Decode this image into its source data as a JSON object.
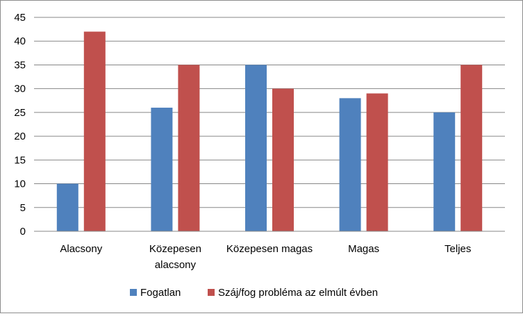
{
  "chart_data": {
    "type": "bar",
    "categories": [
      [
        "Alacsony"
      ],
      [
        "Közepesen",
        "alacsony"
      ],
      [
        "Közepesen magas"
      ],
      [
        "Magas"
      ],
      [
        "Teljes"
      ]
    ],
    "series": [
      {
        "name": "Fogatlan",
        "color": "#4f81bd",
        "values": [
          10,
          26,
          35,
          28,
          25
        ]
      },
      {
        "name": "Száj/fog probléma az elmúlt évben",
        "color": "#c0504d",
        "values": [
          42,
          35,
          30,
          29,
          35
        ]
      }
    ],
    "ylim": [
      0,
      45
    ],
    "yticks": [
      "0",
      "5",
      "10",
      "15",
      "20",
      "25",
      "30",
      "35",
      "40",
      "45"
    ],
    "grid": "horizontal",
    "legend": "bottom",
    "title": "",
    "xlabel": "",
    "ylabel": ""
  }
}
